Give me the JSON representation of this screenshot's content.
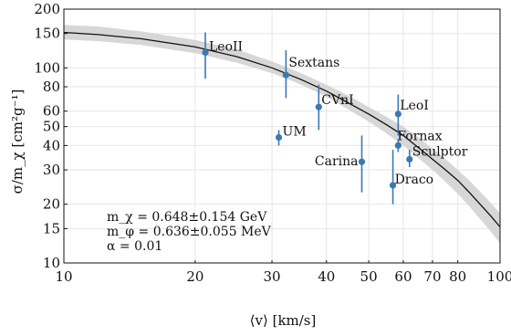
{
  "chart_data": {
    "type": "scatter",
    "xlabel": "⟨v⟩ [km/s]",
    "ylabel": "σ/m_χ [cm²g⁻¹]",
    "x_scale": "log",
    "y_scale": "log",
    "xlim": [
      10,
      100
    ],
    "ylim": [
      10,
      200
    ],
    "grid": true,
    "x_major_ticks": [
      {
        "value": 10,
        "label": "10"
      },
      {
        "value": 100,
        "label": "100"
      }
    ],
    "x_minor_ticks": [
      {
        "value": 20,
        "label": "20"
      },
      {
        "value": 30,
        "label": "30"
      },
      {
        "value": 40,
        "label": "40"
      },
      {
        "value": 50,
        "label": "50"
      },
      {
        "value": 60,
        "label": "60"
      },
      {
        "value": 70,
        "label": "70"
      },
      {
        "value": 80,
        "label": "80"
      }
    ],
    "y_ticks": [
      {
        "value": 10,
        "label": "10"
      },
      {
        "value": 15,
        "label": "15"
      },
      {
        "value": 20,
        "label": "20"
      },
      {
        "value": 30,
        "label": "30"
      },
      {
        "value": 40,
        "label": "40"
      },
      {
        "value": 50,
        "label": "50"
      },
      {
        "value": 60,
        "label": "60"
      },
      {
        "value": 80,
        "label": "80"
      },
      {
        "value": 100,
        "label": "100"
      },
      {
        "value": 150,
        "label": "150"
      },
      {
        "value": 200,
        "label": "200"
      }
    ],
    "points": [
      {
        "label": "LeoII",
        "x": 21.1,
        "y": 120,
        "y_low": 88,
        "y_high": 152
      },
      {
        "label": "Sextans",
        "x": 32.3,
        "y": 92,
        "y_low": 70,
        "y_high": 123
      },
      {
        "label": "CVnI",
        "x": 38.4,
        "y": 63,
        "y_low": 48,
        "y_high": 82
      },
      {
        "label": "UM",
        "x": 31.1,
        "y": 44,
        "y_low": 40,
        "y_high": 48
      },
      {
        "label": "LeoI",
        "x": 58.4,
        "y": 58,
        "y_low": 45,
        "y_high": 73
      },
      {
        "label": "Fornax",
        "x": 58.4,
        "y": 40,
        "y_low": 37,
        "y_high": 43
      },
      {
        "label": "Carina",
        "x": 48.2,
        "y": 33,
        "y_low": 23,
        "y_high": 45
      },
      {
        "label": "Sculptor",
        "x": 62.0,
        "y": 34,
        "y_low": 31,
        "y_high": 38
      },
      {
        "label": "Draco",
        "x": 56.8,
        "y": 25,
        "y_low": 20,
        "y_high": 38
      }
    ],
    "fit_curve": {
      "x": [
        10,
        12,
        15,
        20,
        25,
        30,
        35,
        40,
        45,
        50,
        55,
        60,
        65,
        70,
        75,
        80,
        85,
        90,
        95,
        100
      ],
      "y": [
        152,
        148,
        141,
        128,
        114,
        100,
        87,
        76,
        66,
        58,
        51,
        45,
        39,
        34,
        30,
        26.5,
        23,
        20,
        17.5,
        15.3
      ],
      "band_low": [
        140,
        137,
        131,
        119,
        106,
        94,
        82,
        71,
        61,
        53,
        46,
        40,
        34.5,
        30,
        26,
        22.6,
        19.5,
        16.8,
        14.6,
        12.6
      ],
      "band_high": [
        166,
        163,
        154,
        139,
        124,
        108,
        94,
        82,
        72,
        63,
        56,
        50,
        44,
        38.5,
        34,
        30,
        26.5,
        23.2,
        20.4,
        18
      ]
    },
    "annotations": [
      "m_χ = 0.648±0.154 GeV",
      "m_φ = 0.636±0.055 MeV",
      "α = 0.01"
    ],
    "colors": {
      "points": "#3a78b5",
      "curve": "#111111",
      "band": "#d3d3d3",
      "grid": "#e6e6e6"
    }
  }
}
